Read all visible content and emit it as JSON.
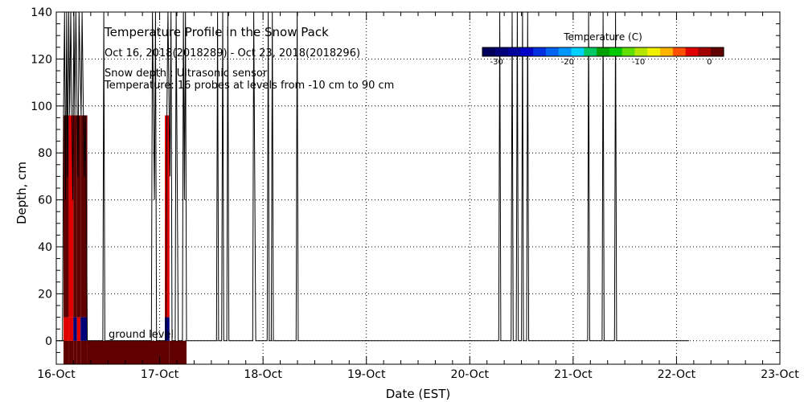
{
  "chart_data": {
    "type": "heatmap",
    "title": "Temperature Profile in the Snow Pack",
    "date_range": "Oct 16, 2018(2018289) - Oct 23, 2018(2018296)",
    "notes": [
      "Snow depth : Ultrasonic sensor",
      "Temperature: 16 probes at levels from -10 cm to 90 cm"
    ],
    "ground_label": "ground level",
    "xlabel": "Date (EST)",
    "ylabel": "Depth, cm",
    "xlim": [
      0,
      7
    ],
    "ylim": [
      -10,
      140
    ],
    "x_ticks": [
      {
        "value": 0,
        "label": "16-Oct"
      },
      {
        "value": 1,
        "label": "17-Oct"
      },
      {
        "value": 2,
        "label": "18-Oct"
      },
      {
        "value": 3,
        "label": "19-Oct"
      },
      {
        "value": 4,
        "label": "20-Oct"
      },
      {
        "value": 5,
        "label": "21-Oct"
      },
      {
        "value": 6,
        "label": "22-Oct"
      },
      {
        "value": 7,
        "label": "23-Oct"
      }
    ],
    "y_ticks": [
      {
        "value": 0,
        "label": "0"
      },
      {
        "value": 20,
        "label": "20"
      },
      {
        "value": 40,
        "label": "40"
      },
      {
        "value": 60,
        "label": "60"
      },
      {
        "value": 80,
        "label": "80"
      },
      {
        "value": 100,
        "label": "100"
      },
      {
        "value": 120,
        "label": "120"
      },
      {
        "value": 140,
        "label": "140"
      }
    ],
    "grid": true,
    "colorbar": {
      "title": "Temperature (C)",
      "range": [
        -32,
        2
      ],
      "ticks": [
        {
          "value": -30,
          "label": "-30"
        },
        {
          "value": -20,
          "label": "-20"
        },
        {
          "value": -10,
          "label": "-10"
        },
        {
          "value": 0,
          "label": "0"
        }
      ],
      "colors": [
        "#00005a",
        "#000078",
        "#00009a",
        "#0000c8",
        "#0030e0",
        "#0064f0",
        "#0096ff",
        "#00d2ff",
        "#00c864",
        "#00a000",
        "#00c800",
        "#60e000",
        "#b4e600",
        "#f0f000",
        "#ffb400",
        "#ff5000",
        "#e00000",
        "#a00000",
        "#600000"
      ]
    },
    "temperature_columns": [
      {
        "x0": 0.07,
        "x1": 0.12,
        "layers": [
          {
            "y0": -10,
            "y1": 0,
            "color": "#600000"
          },
          {
            "y0": 0,
            "y1": 10,
            "color": "#e00000"
          },
          {
            "y0": 10,
            "y1": 96,
            "color": "#600000"
          }
        ]
      },
      {
        "x0": 0.12,
        "x1": 0.165,
        "layers": [
          {
            "y0": -10,
            "y1": 0,
            "color": "#600000"
          },
          {
            "y0": 0,
            "y1": 10,
            "color": "#e00000"
          },
          {
            "y0": 10,
            "y1": 96,
            "color": "#e00000"
          }
        ]
      },
      {
        "x0": 0.165,
        "x1": 0.2,
        "layers": [
          {
            "y0": -10,
            "y1": 0,
            "color": "#600000"
          },
          {
            "y0": 0,
            "y1": 10,
            "color": "#000078"
          },
          {
            "y0": 10,
            "y1": 96,
            "color": "#600000"
          }
        ]
      },
      {
        "x0": 0.2,
        "x1": 0.235,
        "layers": [
          {
            "y0": -10,
            "y1": 0,
            "color": "#600000"
          },
          {
            "y0": 0,
            "y1": 10,
            "color": "#e00000"
          },
          {
            "y0": 10,
            "y1": 96,
            "color": "#600000"
          }
        ]
      },
      {
        "x0": 0.235,
        "x1": 0.3,
        "layers": [
          {
            "y0": -10,
            "y1": 0,
            "color": "#600000"
          },
          {
            "y0": 0,
            "y1": 10,
            "color": "#000078"
          },
          {
            "y0": 10,
            "y1": 96,
            "color": "#600000"
          }
        ]
      },
      {
        "x0": 0.3,
        "x1": 1.05,
        "layers": [
          {
            "y0": -10,
            "y1": 0,
            "color": "#600000"
          }
        ]
      },
      {
        "x0": 1.05,
        "x1": 1.095,
        "layers": [
          {
            "y0": -10,
            "y1": 0,
            "color": "#600000"
          },
          {
            "y0": 0,
            "y1": 10,
            "color": "#000078"
          },
          {
            "y0": 10,
            "y1": 96,
            "color": "#e00000"
          }
        ]
      },
      {
        "x0": 1.095,
        "x1": 1.26,
        "layers": [
          {
            "y0": -10,
            "y1": 0,
            "color": "#600000"
          }
        ]
      }
    ],
    "snow_depth": [
      [
        0.0,
        0
      ],
      [
        0.06,
        0
      ],
      [
        0.07,
        96
      ],
      [
        0.08,
        140
      ],
      [
        0.09,
        60
      ],
      [
        0.1,
        140
      ],
      [
        0.11,
        70
      ],
      [
        0.12,
        140
      ],
      [
        0.13,
        96
      ],
      [
        0.14,
        140
      ],
      [
        0.16,
        60
      ],
      [
        0.17,
        140
      ],
      [
        0.18,
        96
      ],
      [
        0.19,
        140
      ],
      [
        0.21,
        70
      ],
      [
        0.22,
        140
      ],
      [
        0.24,
        96
      ],
      [
        0.25,
        140
      ],
      [
        0.27,
        70
      ],
      [
        0.28,
        96
      ],
      [
        0.29,
        60
      ],
      [
        0.3,
        0
      ],
      [
        0.45,
        0
      ],
      [
        0.46,
        140
      ],
      [
        0.47,
        0
      ],
      [
        0.92,
        0
      ],
      [
        0.93,
        140
      ],
      [
        0.95,
        60
      ],
      [
        0.96,
        140
      ],
      [
        0.97,
        0
      ],
      [
        1.06,
        0
      ],
      [
        1.07,
        96
      ],
      [
        1.08,
        140
      ],
      [
        1.1,
        70
      ],
      [
        1.11,
        140
      ],
      [
        1.12,
        0
      ],
      [
        1.15,
        0
      ],
      [
        1.16,
        140
      ],
      [
        1.18,
        0
      ],
      [
        1.22,
        0
      ],
      [
        1.23,
        140
      ],
      [
        1.24,
        60
      ],
      [
        1.25,
        140
      ],
      [
        1.26,
        0
      ],
      [
        1.55,
        0
      ],
      [
        1.56,
        140
      ],
      [
        1.57,
        0
      ],
      [
        1.6,
        0
      ],
      [
        1.61,
        140
      ],
      [
        1.62,
        0
      ],
      [
        1.65,
        0
      ],
      [
        1.66,
        140
      ],
      [
        1.67,
        0
      ],
      [
        1.9,
        0
      ],
      [
        1.91,
        140
      ],
      [
        1.93,
        0
      ],
      [
        2.04,
        0
      ],
      [
        2.05,
        140
      ],
      [
        2.06,
        0
      ],
      [
        2.08,
        0
      ],
      [
        2.09,
        140
      ],
      [
        2.1,
        0
      ],
      [
        2.32,
        0
      ],
      [
        2.33,
        140
      ],
      [
        2.34,
        0
      ],
      [
        4.28,
        0
      ],
      [
        4.29,
        140
      ],
      [
        4.3,
        0
      ],
      [
        4.4,
        0
      ],
      [
        4.41,
        140
      ],
      [
        4.42,
        0
      ],
      [
        4.45,
        0
      ],
      [
        4.46,
        140
      ],
      [
        4.47,
        0
      ],
      [
        4.5,
        0
      ],
      [
        4.51,
        140
      ],
      [
        4.52,
        0
      ],
      [
        4.55,
        0
      ],
      [
        4.56,
        140
      ],
      [
        4.57,
        0
      ],
      [
        5.14,
        0
      ],
      [
        5.15,
        140
      ],
      [
        5.16,
        0
      ],
      [
        5.28,
        0
      ],
      [
        5.29,
        140
      ],
      [
        5.3,
        0
      ],
      [
        5.4,
        0
      ],
      [
        5.41,
        140
      ],
      [
        5.42,
        0
      ],
      [
        6.12,
        0
      ]
    ]
  }
}
